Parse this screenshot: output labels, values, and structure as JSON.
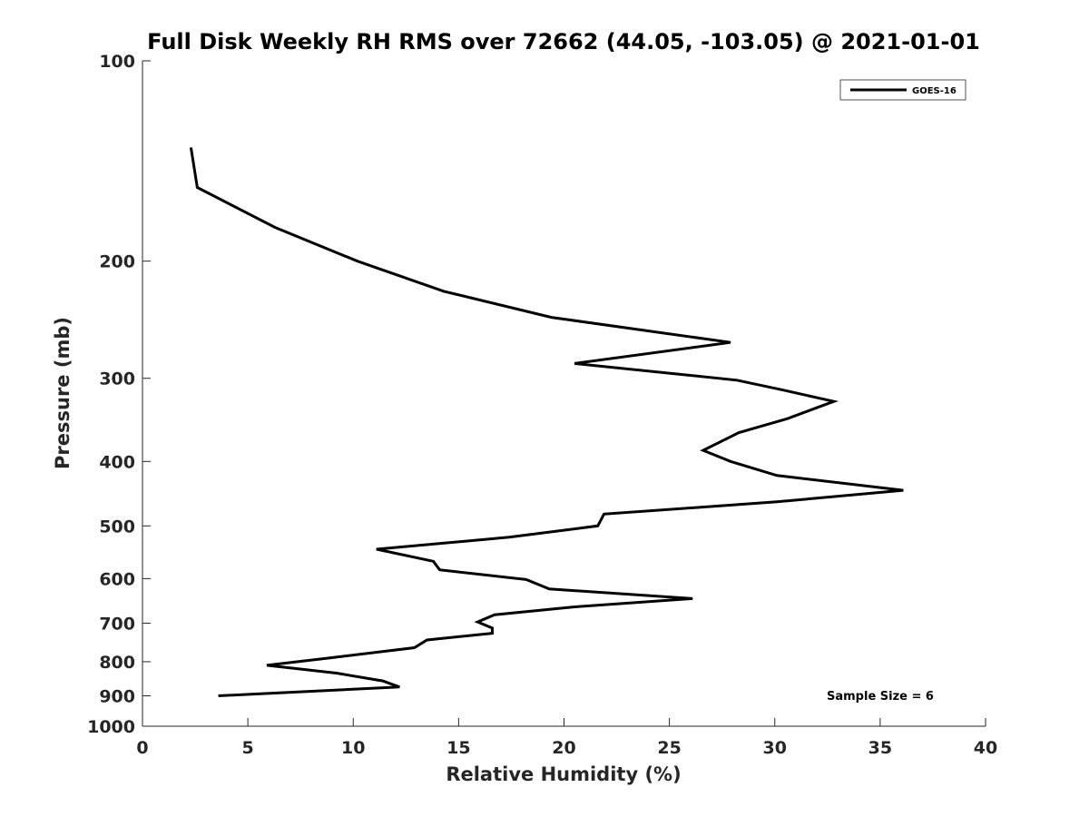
{
  "chart_data": {
    "type": "line",
    "title": "Full Disk Weekly RH RMS over 72662 (44.05, -103.05) @ 2021-01-01",
    "xlabel": "Relative Humidity (%)",
    "ylabel": "Pressure (mb)",
    "xlim": [
      0,
      40
    ],
    "ylim": [
      100,
      1000
    ],
    "yscale": "log",
    "yreversed": true,
    "grid": false,
    "xticks": [
      0,
      5,
      10,
      15,
      20,
      25,
      30,
      35,
      40
    ],
    "xtick_labels": [
      "0",
      "5",
      "10",
      "15",
      "20",
      "25",
      "30",
      "35",
      "40"
    ],
    "yticks": [
      100,
      200,
      300,
      400,
      500,
      600,
      700,
      800,
      900,
      1000
    ],
    "ytick_labels": [
      "100",
      "200",
      "300",
      "400",
      "500",
      "600",
      "700",
      "800",
      "900",
      "1000"
    ],
    "legend": {
      "position": "top-right",
      "entries": [
        "GOES-16"
      ]
    },
    "annotation": "Sample Size = 6",
    "series": [
      {
        "name": "GOES-16",
        "color": "#000000",
        "points": [
          {
            "x": 2.3,
            "p": 135
          },
          {
            "x": 2.6,
            "p": 155
          },
          {
            "x": 6.3,
            "p": 178
          },
          {
            "x": 10.2,
            "p": 200
          },
          {
            "x": 14.3,
            "p": 222
          },
          {
            "x": 19.4,
            "p": 243
          },
          {
            "x": 27.9,
            "p": 265
          },
          {
            "x": 20.5,
            "p": 285
          },
          {
            "x": 28.2,
            "p": 302
          },
          {
            "x": 30.3,
            "p": 312
          },
          {
            "x": 32.8,
            "p": 325
          },
          {
            "x": 30.6,
            "p": 345
          },
          {
            "x": 28.3,
            "p": 362
          },
          {
            "x": 26.6,
            "p": 385
          },
          {
            "x": 27.9,
            "p": 400
          },
          {
            "x": 30.1,
            "p": 420
          },
          {
            "x": 36.1,
            "p": 442
          },
          {
            "x": 30.1,
            "p": 460
          },
          {
            "x": 21.9,
            "p": 480
          },
          {
            "x": 21.6,
            "p": 500
          },
          {
            "x": 17.4,
            "p": 520
          },
          {
            "x": 11.1,
            "p": 542
          },
          {
            "x": 13.8,
            "p": 565
          },
          {
            "x": 14.1,
            "p": 582
          },
          {
            "x": 18.2,
            "p": 602
          },
          {
            "x": 19.3,
            "p": 622
          },
          {
            "x": 26.1,
            "p": 643
          },
          {
            "x": 20.4,
            "p": 662
          },
          {
            "x": 16.7,
            "p": 680
          },
          {
            "x": 15.9,
            "p": 697
          },
          {
            "x": 16.6,
            "p": 712
          },
          {
            "x": 16.6,
            "p": 725
          },
          {
            "x": 13.5,
            "p": 742
          },
          {
            "x": 12.9,
            "p": 762
          },
          {
            "x": 8.8,
            "p": 790
          },
          {
            "x": 5.9,
            "p": 810
          },
          {
            "x": 9.2,
            "p": 832
          },
          {
            "x": 11.4,
            "p": 855
          },
          {
            "x": 12.2,
            "p": 873
          },
          {
            "x": 3.6,
            "p": 900
          }
        ]
      }
    ]
  }
}
